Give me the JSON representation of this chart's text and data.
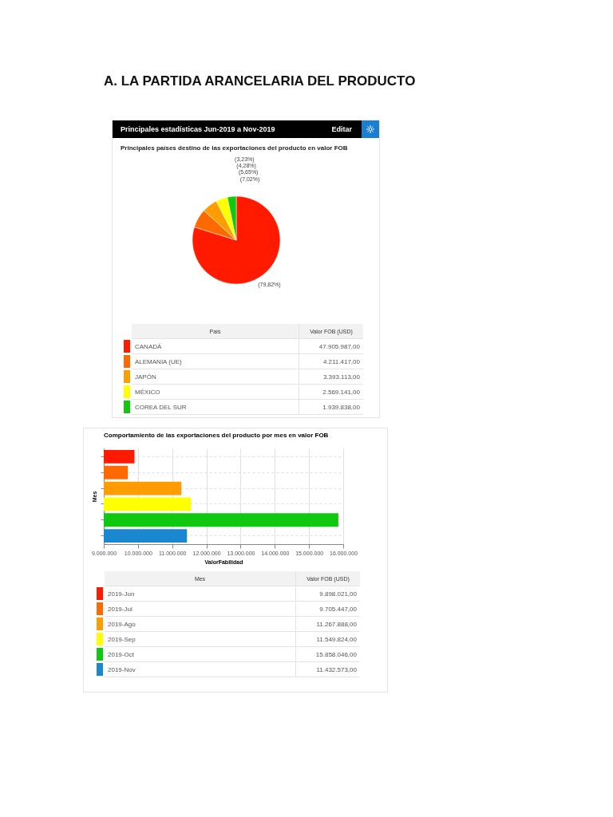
{
  "chart_data": [
    {
      "type": "pie",
      "title": "Principales estadísticas Jun-2019 a Nov-2019",
      "subtitle": "Principales países destino de las exportaciones del producto en valor FOB",
      "categories": [
        "CANADÁ",
        "ALEMANIA (UE)",
        "JAPÓN",
        "MÉXICO",
        "COREA DEL SUR"
      ],
      "values": [
        47905987,
        4211417,
        3393113,
        2569141,
        1939838
      ],
      "colors": [
        "#ff1a00",
        "#ff6a00",
        "#ff9c00",
        "#ffff00",
        "#10c810"
      ],
      "value_labels": [
        "47.905.987,00",
        "4.211.417,00",
        "3.393.113,00",
        "2.569.141,00",
        "1.939.838,00"
      ],
      "legend": "bottom",
      "annotations": [
        "A.  LA PARTIDA ARANCELARIA DEL PRODUCTO",
        "Editar",
        "País",
        "Valor FOB (USD)",
        {
          "text": "(79,82%)",
          "x": "CANADÁ"
        },
        {
          "text": "(7,02%)",
          "x": "ALEMANIA (UE)"
        },
        {
          "text": "(5,65%)",
          "x": "JAPÓN"
        },
        {
          "text": "(4,28%)",
          "x": "MÉXICO"
        },
        {
          "text": "(3,23%)",
          "x": "COREA DEL SUR"
        }
      ]
    },
    {
      "type": "bar",
      "orientation": "horizontal",
      "title": "Comportamiento de las exportaciones del producto por mes en valor FOB",
      "categories": [
        null,
        null,
        null,
        null,
        null,
        null
      ],
      "values": [
        9898021,
        9705447,
        11267888,
        11549824,
        15858046,
        11432573
      ],
      "colors": [
        "#ff1a00",
        "#ff6a00",
        "#ff9c00",
        "#ffff00",
        "#10c810",
        "#1a88d0"
      ],
      "xlim": [
        9000000,
        16000000
      ],
      "xticks": [
        {
          "value": 9000000,
          "label": "9.000.000"
        },
        {
          "value": 10000000,
          "label": "10.000.000"
        },
        {
          "value": 11000000,
          "label": "11.000.000"
        },
        {
          "value": 12000000,
          "label": "12.000.000"
        },
        {
          "value": 13000000,
          "label": "13.000.000"
        },
        {
          "value": 14000000,
          "label": "14.000.000"
        },
        {
          "value": 15000000,
          "label": "15.000.000"
        },
        {
          "value": 16000000,
          "label": "16.000.000"
        }
      ],
      "xlabel": "ValorFabilidad",
      "ylabel": "Mes",
      "grid": true,
      "tick_labels": "x",
      "annotations": [
        "Mes",
        "Valor FOB (USD)",
        "2019-Jun",
        "9.898.021,00",
        "2019-Jul",
        "9.705.447,00",
        "2019-Ago",
        "11.267.888,00",
        "2019-Sep",
        "11.549.824,00",
        "2019-Oct",
        "15.858.046,00",
        "2019-Nov",
        "11.432.573,00"
      ]
    }
  ]
}
